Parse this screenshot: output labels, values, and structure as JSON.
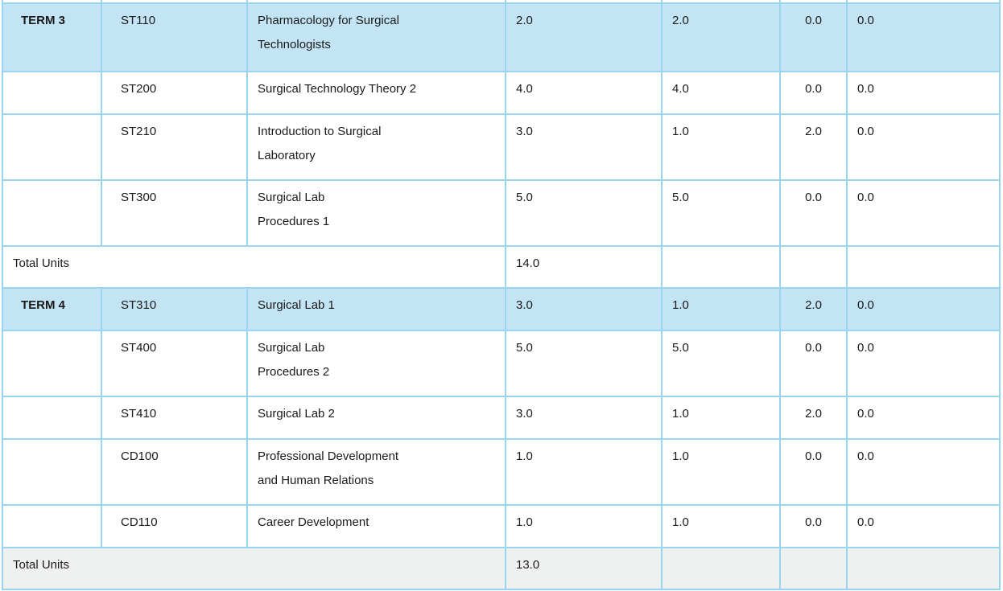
{
  "colors": {
    "border": "#9bd4ee",
    "highlight": "#c2e4f4",
    "total_gray": "#eff1f0",
    "text": "#1a1a1a"
  },
  "rows": [
    {
      "term": "TERM 3",
      "code": "ST110",
      "title": [
        "Pharmacology for Surgical",
        "Technologists"
      ],
      "values": [
        "2.0",
        "2.0",
        "0.0",
        "0.0"
      ]
    },
    {
      "code": "ST200",
      "title": [
        "Surgical Technology Theory 2"
      ],
      "values": [
        "4.0",
        "4.0",
        "0.0",
        "0.0"
      ]
    },
    {
      "code": "ST210",
      "title": [
        "Introduction to Surgical",
        "Laboratory"
      ],
      "values": [
        "3.0",
        "1.0",
        "2.0",
        "0.0"
      ]
    },
    {
      "code": "ST300",
      "title": [
        "Surgical Lab",
        "Procedures 1"
      ],
      "values": [
        "5.0",
        "5.0",
        "0.0",
        "0.0"
      ]
    },
    {
      "label": "Total Units",
      "total": "14.0"
    },
    {
      "term": "TERM 4",
      "code": "ST310",
      "title": [
        "Surgical Lab 1"
      ],
      "values": [
        "3.0",
        "1.0",
        "2.0",
        "0.0"
      ]
    },
    {
      "code": "ST400",
      "title": [
        "Surgical Lab",
        "Procedures 2"
      ],
      "values": [
        "5.0",
        "5.0",
        "0.0",
        "0.0"
      ]
    },
    {
      "code": "ST410",
      "title": [
        "Surgical Lab 2"
      ],
      "values": [
        "3.0",
        "1.0",
        "2.0",
        "0.0"
      ]
    },
    {
      "code": "CD100",
      "title": [
        "Professional Development",
        "and Human Relations"
      ],
      "values": [
        "1.0",
        "1.0",
        "0.0",
        "0.0"
      ]
    },
    {
      "code": "CD110",
      "title": [
        "Career Development"
      ],
      "values": [
        "1.0",
        "1.0",
        "0.0",
        "0.0"
      ]
    },
    {
      "label": "Total Units",
      "total": "13.0"
    }
  ]
}
